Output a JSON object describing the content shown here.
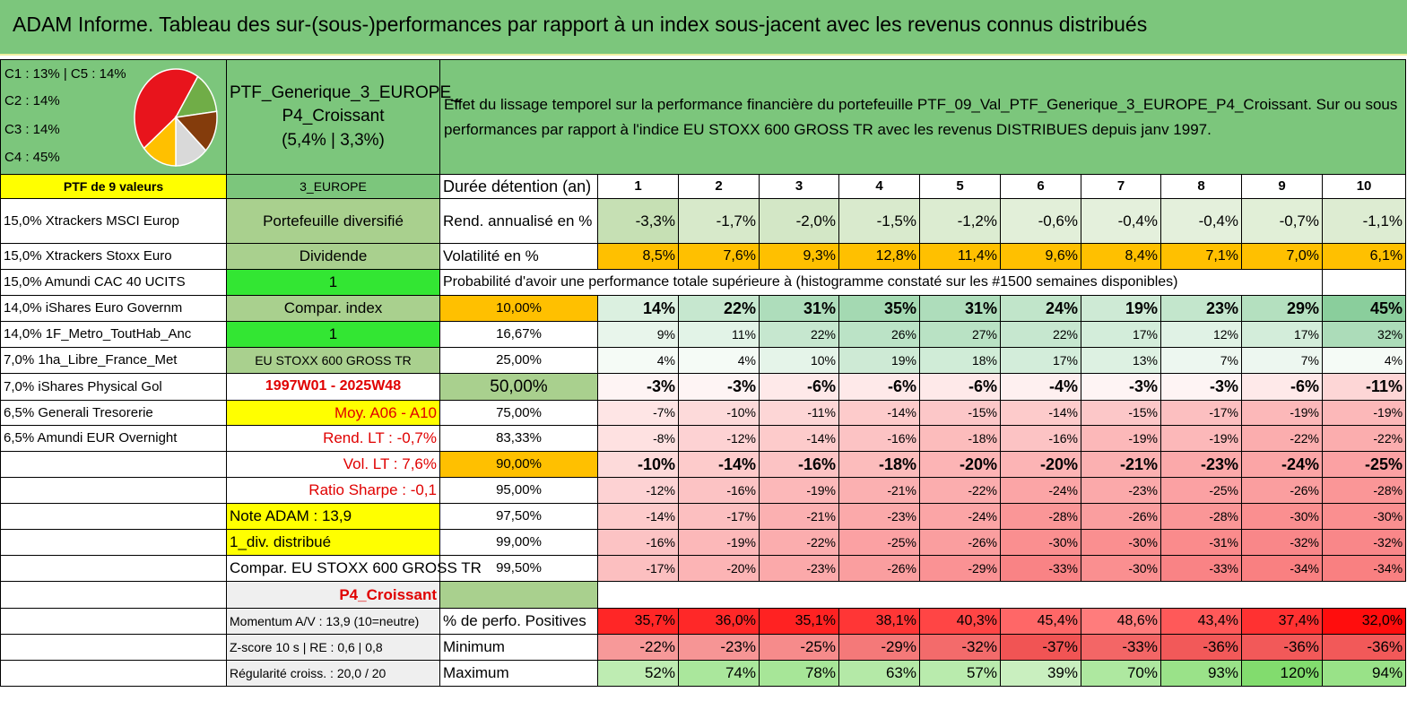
{
  "title": "ADAM Informe. Tableau des sur-(sous-)performances par rapport à un index sous-jacent avec les revenus connus distribués",
  "pie": {
    "legend": [
      "C1 : 13% | C5 : 14%",
      "C2 : 14%",
      "C3 : 14%",
      "C4 : 45%"
    ],
    "slices": [
      {
        "label": "C4",
        "value": 45,
        "color": "#e8141c"
      },
      {
        "label": "C3",
        "value": 14,
        "color": "#70ad47"
      },
      {
        "label": "C2",
        "value": 14,
        "color": "#843c0c"
      },
      {
        "label": "C1",
        "value": 13,
        "color": "#d9d9d9"
      },
      {
        "label": "C5",
        "value": 14,
        "color": "#ffc000"
      }
    ]
  },
  "portfolio": {
    "name": "PTF_Generique_3_EUROPE_ P4_Croissant",
    "perf": "(5,4% | 3,3%)",
    "header_left": "PTF de 9 valeurs",
    "header_mid": "3_EUROPE"
  },
  "description": "Effet du lissage temporel sur la performance financière du portefeuille PTF_09_Val_PTF_Generique_3_EUROPE_P4_Croissant. Sur ou sous performances par rapport à l'indice EU STOXX 600 GROSS TR avec les revenus DISTRIBUES depuis janv 1997.",
  "holdings": [
    "15,0% Xtrackers MSCI Europ",
    "15,0% Xtrackers Stoxx Euro",
    "15,0% Amundi CAC 40 UCITS",
    "14,0% iShares Euro Governm",
    "14,0% 1F_Metro_ToutHab_Anc",
    "7,0% 1ha_Libre_France_Met",
    "7,0% iShares Physical Gol",
    "6,5% Generali Tresorerie",
    "6,5% Amundi EUR Overnight"
  ],
  "mid": {
    "diversified": "Portefeuille diversifié",
    "dividend": "Dividende",
    "one_a": "1",
    "compar_index": "Compar. index",
    "one_b": "1",
    "index_name": "EU STOXX 600 GROSS TR",
    "period": "1997W01 - 2025W48",
    "moy": "Moy. A06 - A10",
    "rend_lt": "Rend. LT : -0,7%",
    "vol_lt": "Vol. LT : 7,6%",
    "sharpe": "Ratio Sharpe : -0,1",
    "note": "Note ADAM : 13,9",
    "div": "1_div. distribué",
    "compar": "Compar. EU STOXX 600 GROSS TR",
    "p4": "P4_Croissant",
    "momentum": "Momentum A/V : 13,9 (10=neutre)",
    "zscore": "Z-score 10 s | RE : 0,6 | 0,8",
    "regularite": "Régularité croiss. : 20,0 / 20"
  },
  "labels": {
    "duree": "Durée détention (an)",
    "rend": "Rend. annualisé en %",
    "vol": "Volatilité en %",
    "proba": "Probabilité d'avoir une performance totale supérieure à (histogramme constaté sur les #1500 semaines disponibles)",
    "positives": "% de perfo. Positives",
    "minimum": "Minimum",
    "maximum": "Maximum"
  },
  "years": [
    "1",
    "2",
    "3",
    "4",
    "5",
    "6",
    "7",
    "8",
    "9",
    "10"
  ],
  "rend": [
    "-3,3%",
    "-1,7%",
    "-2,0%",
    "-1,5%",
    "-1,2%",
    "-0,6%",
    "-0,4%",
    "-0,4%",
    "-0,7%",
    "-1,1%"
  ],
  "vol": [
    "8,5%",
    "7,6%",
    "9,3%",
    "12,8%",
    "11,4%",
    "9,6%",
    "8,4%",
    "7,1%",
    "7,0%",
    "6,1%"
  ],
  "proba_rows": [
    {
      "level": "10,00%",
      "values": [
        "14%",
        "22%",
        "31%",
        "35%",
        "31%",
        "24%",
        "19%",
        "23%",
        "29%",
        "45%"
      ]
    },
    {
      "level": "16,67%",
      "values": [
        "9%",
        "11%",
        "22%",
        "26%",
        "27%",
        "22%",
        "17%",
        "12%",
        "17%",
        "32%"
      ]
    },
    {
      "level": "25,00%",
      "values": [
        "4%",
        "4%",
        "10%",
        "19%",
        "18%",
        "17%",
        "13%",
        "7%",
        "7%",
        "4%"
      ]
    },
    {
      "level": "50,00%",
      "values": [
        "-3%",
        "-3%",
        "-6%",
        "-6%",
        "-6%",
        "-4%",
        "-3%",
        "-3%",
        "-6%",
        "-11%"
      ]
    },
    {
      "level": "75,00%",
      "values": [
        "-7%",
        "-10%",
        "-11%",
        "-14%",
        "-15%",
        "-14%",
        "-15%",
        "-17%",
        "-19%",
        "-19%"
      ]
    },
    {
      "level": "83,33%",
      "values": [
        "-8%",
        "-12%",
        "-14%",
        "-16%",
        "-18%",
        "-16%",
        "-19%",
        "-19%",
        "-22%",
        "-22%"
      ]
    },
    {
      "level": "90,00%",
      "values": [
        "-10%",
        "-14%",
        "-16%",
        "-18%",
        "-20%",
        "-20%",
        "-21%",
        "-23%",
        "-24%",
        "-25%"
      ]
    },
    {
      "level": "95,00%",
      "values": [
        "-12%",
        "-16%",
        "-19%",
        "-21%",
        "-22%",
        "-24%",
        "-23%",
        "-25%",
        "-26%",
        "-28%"
      ]
    },
    {
      "level": "97,50%",
      "values": [
        "-14%",
        "-17%",
        "-21%",
        "-23%",
        "-24%",
        "-28%",
        "-26%",
        "-28%",
        "-30%",
        "-30%"
      ]
    },
    {
      "level": "99,00%",
      "values": [
        "-16%",
        "-19%",
        "-22%",
        "-25%",
        "-26%",
        "-30%",
        "-30%",
        "-31%",
        "-32%",
        "-32%"
      ]
    },
    {
      "level": "99,50%",
      "values": [
        "-17%",
        "-20%",
        "-23%",
        "-26%",
        "-29%",
        "-33%",
        "-30%",
        "-33%",
        "-34%",
        "-34%"
      ]
    }
  ],
  "positives": [
    "35,7%",
    "36,0%",
    "35,1%",
    "38,1%",
    "40,3%",
    "45,4%",
    "48,6%",
    "43,4%",
    "37,4%",
    "32,0%"
  ],
  "minimum": [
    "-22%",
    "-23%",
    "-25%",
    "-29%",
    "-32%",
    "-37%",
    "-33%",
    "-36%",
    "-36%",
    "-36%"
  ],
  "maximum": [
    "52%",
    "74%",
    "78%",
    "63%",
    "57%",
    "39%",
    "70%",
    "93%",
    "120%",
    "94%"
  ]
}
